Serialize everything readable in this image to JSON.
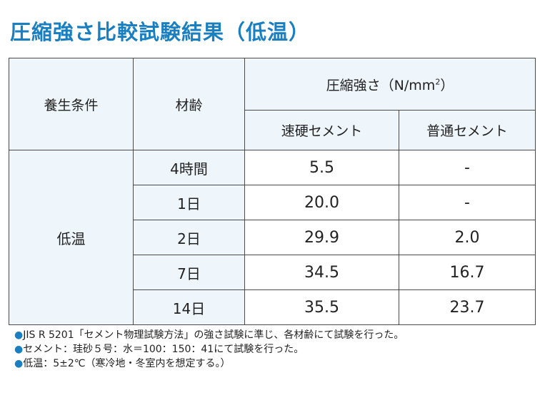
{
  "title": "圧縮強さ比較試験結果（低温）",
  "table": {
    "headers": {
      "condition": "養生条件",
      "age": "材齢",
      "strength": "圧縮強さ（N/",
      "strength_unit": "mm",
      "strength_unit_sup": "2",
      "strength_close": "）",
      "rapid": "速硬セメント",
      "normal": "普通セメント"
    },
    "condition_value": "低温",
    "rows": [
      {
        "age": "4時間",
        "rapid": "5.5",
        "normal": "-"
      },
      {
        "age": "1日",
        "rapid": "20.0",
        "normal": "-"
      },
      {
        "age": "2日",
        "rapid": "29.9",
        "normal": "2.0"
      },
      {
        "age": "7日",
        "rapid": "34.5",
        "normal": "16.7"
      },
      {
        "age": "14日",
        "rapid": "35.5",
        "normal": "23.7"
      }
    ]
  },
  "notes": {
    "bullet": "●",
    "items": [
      "JIS R 5201「セメント物理試験方法」の強さ試験に準じ、各材齢にて試験を行った。",
      "セメント：珪砂５号：水＝100：150：41にて試験を行った。",
      "低温：5±2℃（寒冷地・冬室内を想定する。）"
    ]
  }
}
